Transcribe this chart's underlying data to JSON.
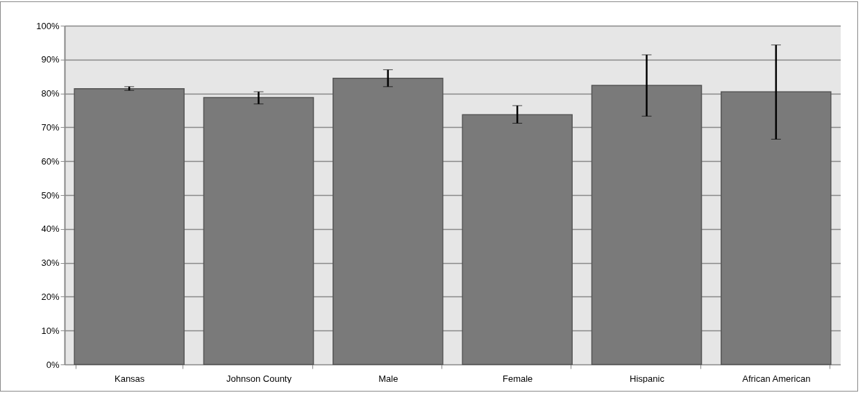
{
  "chart_data": {
    "type": "bar",
    "categories": [
      "Kansas",
      "Johnson County",
      "Male",
      "Female",
      "Hispanic",
      "African American"
    ],
    "values": [
      81.4,
      78.8,
      84.5,
      73.7,
      82.4,
      80.5
    ],
    "errors": [
      [
        80.9,
        82.0
      ],
      [
        76.9,
        80.5
      ],
      [
        82.0,
        87.0
      ],
      [
        71.2,
        76.4
      ],
      [
        73.3,
        91.4
      ],
      [
        66.5,
        94.3
      ]
    ],
    "color": "#7a7a7a",
    "ylim": [
      0,
      100
    ],
    "yticks": [
      {
        "value": 0,
        "label": "0%"
      },
      {
        "value": 10,
        "label": "10%"
      },
      {
        "value": 20,
        "label": "20%"
      },
      {
        "value": 30,
        "label": "30%"
      },
      {
        "value": 40,
        "label": "40%"
      },
      {
        "value": 50,
        "label": "50%"
      },
      {
        "value": 60,
        "label": "60%"
      },
      {
        "value": 70,
        "label": "70%"
      },
      {
        "value": 80,
        "label": "80%"
      },
      {
        "value": 90,
        "label": "90%"
      },
      {
        "value": 100,
        "label": "100%"
      }
    ],
    "grid": "y"
  }
}
